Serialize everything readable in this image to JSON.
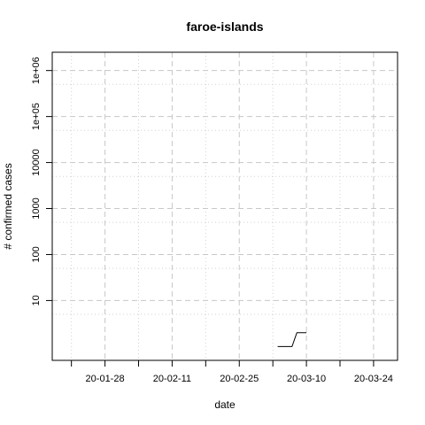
{
  "chart_data": {
    "type": "line",
    "title": "faroe-islands",
    "xlabel": "date",
    "ylabel": "# confirmed cases",
    "x_scale": "date",
    "y_scale": "log10",
    "xlim": [
      "2020-01-17",
      "2020-03-29"
    ],
    "ylim": [
      0.5,
      2500000
    ],
    "x_ticks": [
      {
        "date": "2020-01-28",
        "label": "20-01-28"
      },
      {
        "date": "2020-02-11",
        "label": "20-02-11"
      },
      {
        "date": "2020-02-25",
        "label": "20-02-25"
      },
      {
        "date": "2020-03-10",
        "label": "20-03-10"
      },
      {
        "date": "2020-03-24",
        "label": "20-03-24"
      }
    ],
    "y_ticks": [
      {
        "value": 10,
        "label": "10"
      },
      {
        "value": 100,
        "label": "100"
      },
      {
        "value": 1000,
        "label": "1000"
      },
      {
        "value": 10000,
        "label": "10000"
      },
      {
        "value": 100000,
        "label": "1e+05"
      },
      {
        "value": 1000000,
        "label": "1e+06"
      }
    ],
    "y_minor_ticks": [
      5,
      50,
      500,
      5000,
      50000,
      500000
    ],
    "grid": true,
    "legend": "none",
    "series": [
      {
        "x": [
          "2020-03-04",
          "2020-03-05",
          "2020-03-06",
          "2020-03-07",
          "2020-03-08",
          "2020-03-09",
          "2020-03-10"
        ],
        "y": [
          1,
          1,
          1,
          1,
          2,
          2,
          2
        ]
      }
    ]
  }
}
